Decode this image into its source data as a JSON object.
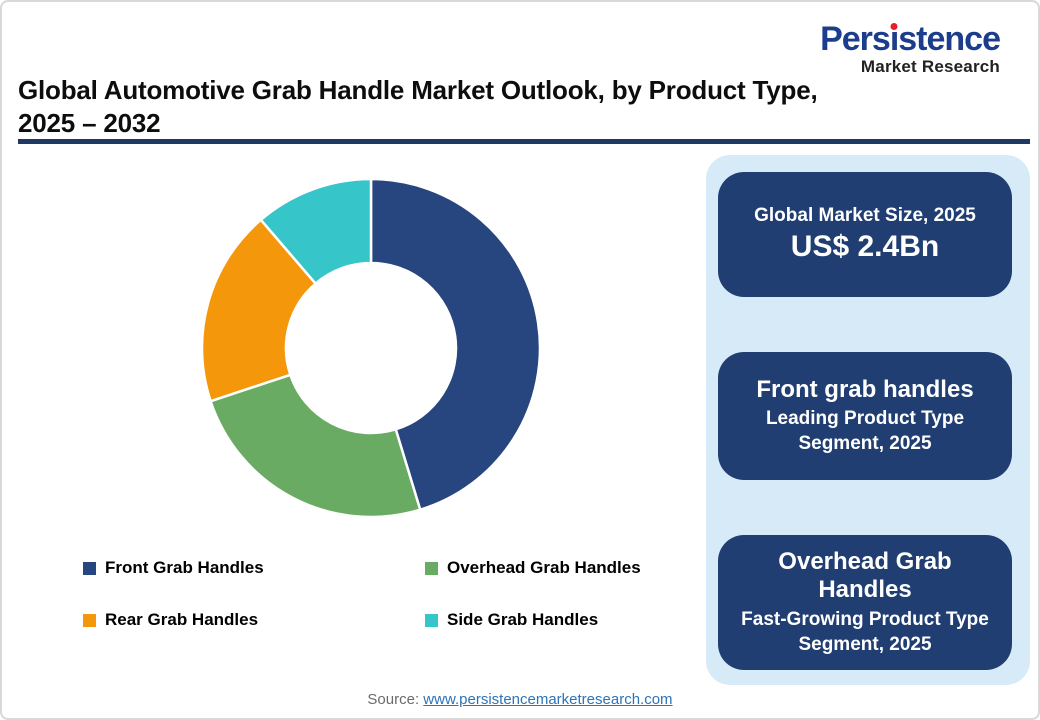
{
  "logo": {
    "brand_pre": "Pers",
    "brand_i": "i",
    "brand_post": "stence",
    "subtitle": "Market Research",
    "brand_color": "#1C3D8C",
    "dot_color": "#ED1C24"
  },
  "header": {
    "title_line1": "Global Automotive Grab Handle Market Outlook, by Product Type,",
    "title_line2": "2025 – 2032",
    "rule_color": "#1F3864"
  },
  "chart_data": {
    "type": "pie",
    "subtype": "donut",
    "title": "Global Automotive Grab Handle Market Outlook, by Product Type, 2025 – 2032",
    "categories": [
      "Front Grab Handles",
      "Overhead Grab Handles",
      "Rear Grab Handles",
      "Side Grab Handles"
    ],
    "values": [
      45.3,
      24.6,
      18.8,
      11.3
    ],
    "unit": "percent share, estimated from arc angles (no data labels shown)",
    "colors": [
      "#274680",
      "#6AAB64",
      "#F5970B",
      "#36C5C9"
    ],
    "start_angle_deg": 0,
    "direction": "clockwise",
    "inner_radius_ratio": 0.5,
    "legend_position": "bottom",
    "data_labels": false
  },
  "sidebar": {
    "bg": "#D6EAF8",
    "card_bg": "#203E72",
    "cards": [
      {
        "line1": "Global Market Size, 2025",
        "line2": "US$ 2.4Bn"
      },
      {
        "line1": "Front grab handles",
        "line2": "Leading Product Type Segment, 2025"
      },
      {
        "line1": "Overhead Grab Handles",
        "line2": "Fast-Growing Product Type Segment, 2025"
      }
    ]
  },
  "footer": {
    "source_label": "Source:",
    "source_link": "www.persistencemarketresearch.com",
    "link_color": "#2E74B5"
  }
}
